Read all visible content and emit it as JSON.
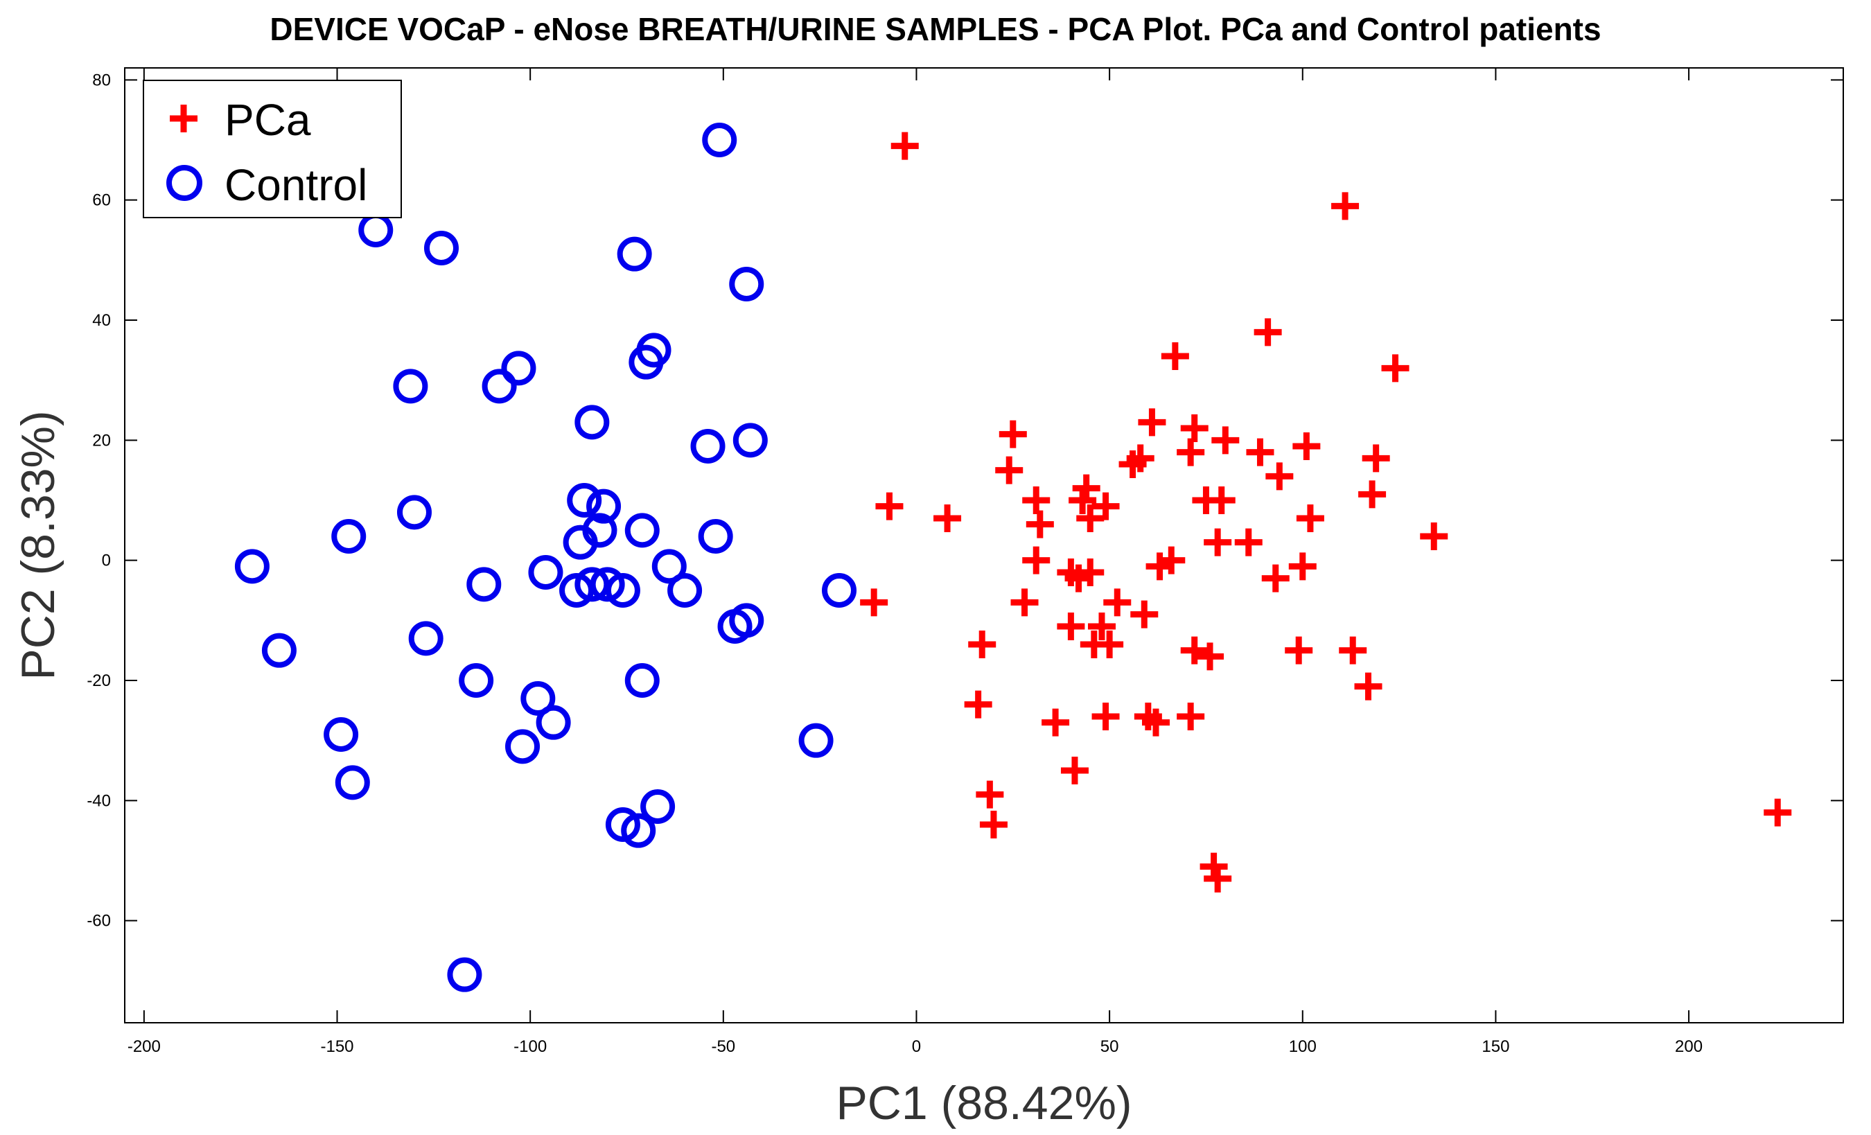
{
  "chart_data": {
    "type": "scatter",
    "title": "DEVICE VOCaP - eNose BREATH/URINE SAMPLES - PCA Plot. PCa and Control patients",
    "xlabel": "PC1 (88.42%)",
    "ylabel": "PC2 (8.33%)",
    "xlim": [
      -205,
      240
    ],
    "ylim": [
      -77,
      82
    ],
    "xticks": [
      -200,
      -150,
      -100,
      -50,
      0,
      50,
      100,
      150,
      200
    ],
    "yticks": [
      -60,
      -40,
      -20,
      0,
      20,
      40,
      60,
      80
    ],
    "grid": false,
    "legend_position": "top-left",
    "series": [
      {
        "name": "PCa",
        "marker": "plus",
        "color": "#ff0000",
        "points": [
          [
            -3,
            69
          ],
          [
            111,
            59
          ],
          [
            91,
            38
          ],
          [
            67,
            34
          ],
          [
            124,
            32
          ],
          [
            25,
            21
          ],
          [
            61,
            23
          ],
          [
            72,
            22
          ],
          [
            80,
            20
          ],
          [
            101,
            19
          ],
          [
            58,
            17
          ],
          [
            89,
            18
          ],
          [
            119,
            17
          ],
          [
            71,
            18
          ],
          [
            56,
            16
          ],
          [
            24,
            15
          ],
          [
            44,
            12
          ],
          [
            94,
            14
          ],
          [
            118,
            11
          ],
          [
            31,
            10
          ],
          [
            -7,
            9
          ],
          [
            8,
            7
          ],
          [
            43,
            10
          ],
          [
            49,
            9
          ],
          [
            75,
            10
          ],
          [
            79,
            10
          ],
          [
            102,
            7
          ],
          [
            45,
            7
          ],
          [
            32,
            6
          ],
          [
            134,
            4
          ],
          [
            78,
            3
          ],
          [
            86,
            3
          ],
          [
            66,
            0
          ],
          [
            31,
            0
          ],
          [
            100,
            -1
          ],
          [
            63,
            -1
          ],
          [
            40,
            -2
          ],
          [
            42,
            -3
          ],
          [
            45,
            -2
          ],
          [
            93,
            -3
          ],
          [
            -11,
            -7
          ],
          [
            28,
            -7
          ],
          [
            52,
            -7
          ],
          [
            59,
            -9
          ],
          [
            40,
            -11
          ],
          [
            48,
            -11
          ],
          [
            17,
            -14
          ],
          [
            46,
            -14
          ],
          [
            50,
            -14
          ],
          [
            72,
            -15
          ],
          [
            76,
            -16
          ],
          [
            99,
            -15
          ],
          [
            113,
            -15
          ],
          [
            117,
            -21
          ],
          [
            16,
            -24
          ],
          [
            36,
            -27
          ],
          [
            49,
            -26
          ],
          [
            60,
            -26
          ],
          [
            62,
            -27
          ],
          [
            71,
            -26
          ],
          [
            41,
            -35
          ],
          [
            19,
            -39
          ],
          [
            20,
            -44
          ],
          [
            77,
            -51
          ],
          [
            78,
            -53
          ],
          [
            223,
            -42
          ]
        ]
      },
      {
        "name": "Control",
        "marker": "circle",
        "color": "#0000ee",
        "points": [
          [
            -51,
            70
          ],
          [
            -140,
            55
          ],
          [
            -123,
            52
          ],
          [
            -73,
            51
          ],
          [
            -44,
            46
          ],
          [
            -68,
            35
          ],
          [
            -70,
            33
          ],
          [
            -103,
            32
          ],
          [
            -108,
            29
          ],
          [
            -131,
            29
          ],
          [
            -84,
            23
          ],
          [
            -54,
            19
          ],
          [
            -43,
            20
          ],
          [
            -86,
            10
          ],
          [
            -81,
            9
          ],
          [
            -130,
            8
          ],
          [
            -82,
            5
          ],
          [
            -71,
            5
          ],
          [
            -52,
            4
          ],
          [
            -147,
            4
          ],
          [
            -87,
            3
          ],
          [
            -172,
            -1
          ],
          [
            -96,
            -2
          ],
          [
            -64,
            -1
          ],
          [
            -20,
            -5
          ],
          [
            -84,
            -4
          ],
          [
            -80,
            -4
          ],
          [
            -76,
            -5
          ],
          [
            -88,
            -5
          ],
          [
            -60,
            -5
          ],
          [
            -112,
            -4
          ],
          [
            -47,
            -11
          ],
          [
            -44,
            -10
          ],
          [
            -165,
            -15
          ],
          [
            -127,
            -13
          ],
          [
            -114,
            -20
          ],
          [
            -71,
            -20
          ],
          [
            -98,
            -23
          ],
          [
            -94,
            -27
          ],
          [
            -149,
            -29
          ],
          [
            -26,
            -30
          ],
          [
            -102,
            -31
          ],
          [
            -146,
            -37
          ],
          [
            -67,
            -41
          ],
          [
            -76,
            -44
          ],
          [
            -72,
            -45
          ],
          [
            -117,
            -69
          ]
        ]
      }
    ]
  }
}
